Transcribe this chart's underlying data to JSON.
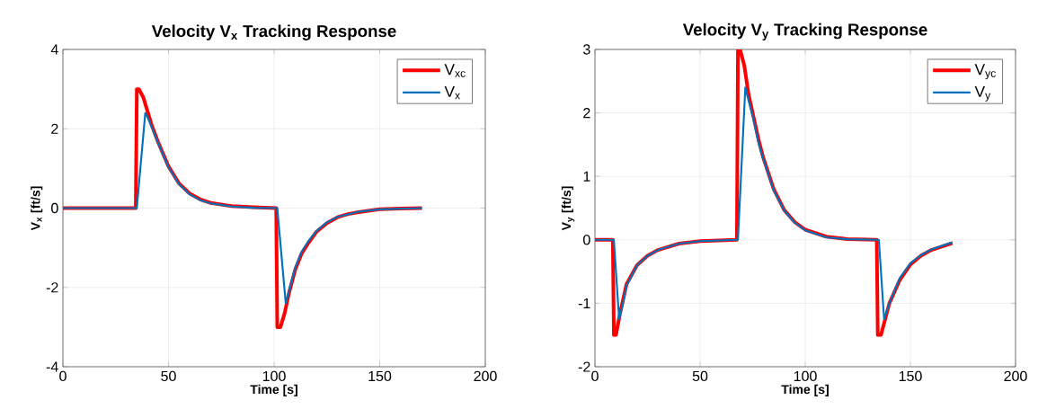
{
  "chart_data": [
    {
      "type": "line",
      "title": "Velocity V$_{x}$ Tracking Response",
      "xlabel": "Time [s]",
      "ylabel": "V$_{x}$ [ft/s]",
      "xlim": [
        0,
        200
      ],
      "ylim": [
        -4,
        4
      ],
      "xticks": [
        0,
        50,
        100,
        150,
        200
      ],
      "yticks": [
        -4,
        -2,
        0,
        2,
        4
      ],
      "grid": true,
      "legend": "top right",
      "series": [
        {
          "name": "V$_{xc}$",
          "color": "#ff0000",
          "x": [
            0,
            34.5,
            35,
            36,
            38,
            40,
            42,
            45,
            48,
            50,
            55,
            60,
            65,
            70,
            80,
            90,
            101,
            101.5,
            103,
            105,
            107,
            110,
            113,
            116,
            120,
            125,
            130,
            135,
            140,
            150,
            160,
            170
          ],
          "values": [
            0,
            0,
            3,
            3,
            2.8,
            2.45,
            2.1,
            1.67,
            1.3,
            1.05,
            0.62,
            0.37,
            0.22,
            0.13,
            0.05,
            0.02,
            0,
            -3,
            -3,
            -2.65,
            -2.15,
            -1.55,
            -1.15,
            -0.9,
            -0.6,
            -0.38,
            -0.23,
            -0.15,
            -0.1,
            -0.03,
            -0.01,
            0
          ]
        },
        {
          "name": "V$_{x}$",
          "color": "#0072bd",
          "x": [
            0,
            35,
            39,
            40,
            42,
            45,
            48,
            50,
            55,
            60,
            65,
            70,
            80,
            90,
            101.5,
            105.5,
            107,
            110,
            113,
            116,
            120,
            125,
            130,
            140,
            150,
            170
          ],
          "values": [
            0,
            0,
            2.4,
            2.3,
            2.05,
            1.65,
            1.28,
            1.03,
            0.6,
            0.35,
            0.2,
            0.12,
            0.04,
            0.01,
            0,
            -2.4,
            -2.1,
            -1.5,
            -1.1,
            -0.85,
            -0.58,
            -0.36,
            -0.22,
            -0.09,
            -0.03,
            0
          ]
        }
      ]
    },
    {
      "type": "line",
      "title": "Velocity V$_{y}$ Tracking Response",
      "xlabel": "Time [s]",
      "ylabel": "V$_{y}$ [ft/s]",
      "xlim": [
        0,
        200
      ],
      "ylim": [
        -2,
        3
      ],
      "xticks": [
        0,
        50,
        100,
        150,
        200
      ],
      "yticks": [
        -2,
        -1,
        0,
        1,
        2,
        3
      ],
      "grid": true,
      "legend": "top right",
      "series": [
        {
          "name": "V$_{yc}$",
          "color": "#ff0000",
          "x": [
            0,
            8.5,
            9,
            10,
            12,
            15,
            20,
            25,
            30,
            40,
            50,
            67.5,
            68,
            69,
            71,
            73,
            75,
            78,
            80,
            85,
            90,
            95,
            100,
            110,
            120,
            134,
            134.5,
            136,
            138,
            140,
            145,
            150,
            155,
            160,
            170
          ],
          "values": [
            0,
            0,
            -1.5,
            -1.5,
            -1.15,
            -0.7,
            -0.4,
            -0.25,
            -0.16,
            -0.06,
            -0.02,
            0,
            3,
            3,
            2.75,
            2.3,
            2.0,
            1.55,
            1.3,
            0.8,
            0.47,
            0.28,
            0.16,
            0.05,
            0.01,
            0,
            -1.5,
            -1.5,
            -1.25,
            -1.0,
            -0.63,
            -0.39,
            -0.25,
            -0.16,
            -0.05
          ]
        },
        {
          "name": "V$_{y}$",
          "color": "#0072bd",
          "x": [
            0,
            9,
            11.5,
            13,
            15,
            20,
            25,
            30,
            40,
            50,
            68,
            71.5,
            73,
            75,
            78,
            80,
            85,
            90,
            95,
            100,
            110,
            120,
            135,
            137.5,
            140,
            145,
            150,
            155,
            160,
            170
          ],
          "values": [
            0,
            0,
            -1.25,
            -1.05,
            -0.72,
            -0.4,
            -0.25,
            -0.16,
            -0.06,
            -0.02,
            0,
            2.4,
            2.2,
            1.95,
            1.5,
            1.28,
            0.78,
            0.46,
            0.27,
            0.15,
            0.04,
            0.01,
            0,
            -1.25,
            -1.0,
            -0.6,
            -0.37,
            -0.24,
            -0.15,
            -0.04
          ]
        }
      ]
    }
  ]
}
